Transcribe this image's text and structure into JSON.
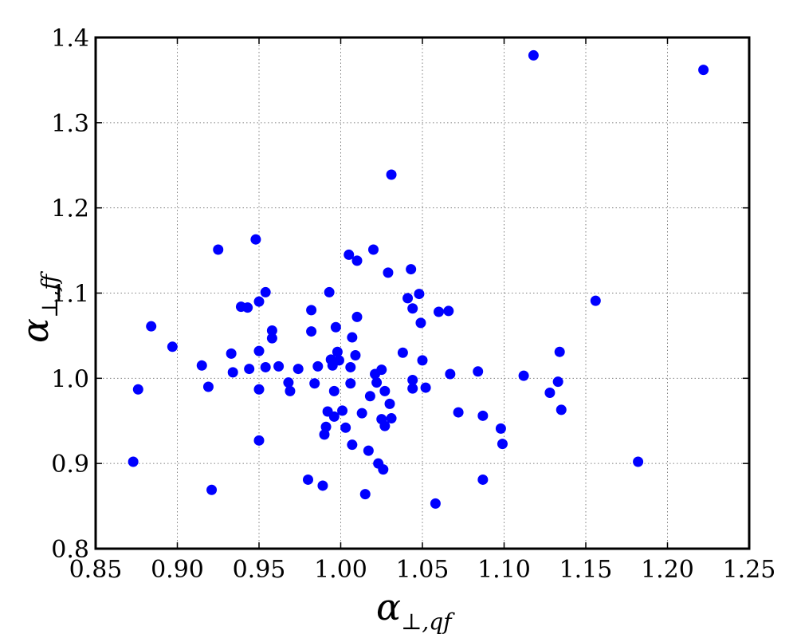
{
  "chart_data": {
    "type": "scatter",
    "xlabel": {
      "main": "α",
      "sub": "⊥,qf"
    },
    "ylabel": {
      "main": "α",
      "sub": "⊥,ff"
    },
    "xlim": [
      0.85,
      1.25
    ],
    "ylim": [
      0.8,
      1.4
    ],
    "xticks": [
      "0.85",
      "0.90",
      "0.95",
      "1.00",
      "1.05",
      "1.10",
      "1.15",
      "1.20",
      "1.25"
    ],
    "yticks": [
      "0.8",
      "0.9",
      "1.0",
      "1.1",
      "1.2",
      "1.3",
      "1.4"
    ],
    "grid": true,
    "marker_color": "#0000ff",
    "points": [
      {
        "x": 0.873,
        "y": 0.902
      },
      {
        "x": 0.876,
        "y": 0.987
      },
      {
        "x": 0.884,
        "y": 1.061
      },
      {
        "x": 0.897,
        "y": 1.037
      },
      {
        "x": 0.915,
        "y": 1.015
      },
      {
        "x": 0.919,
        "y": 0.99
      },
      {
        "x": 0.921,
        "y": 0.869
      },
      {
        "x": 0.925,
        "y": 1.151
      },
      {
        "x": 0.933,
        "y": 1.029
      },
      {
        "x": 0.934,
        "y": 1.007
      },
      {
        "x": 0.939,
        "y": 1.084
      },
      {
        "x": 0.943,
        "y": 1.083
      },
      {
        "x": 0.944,
        "y": 1.011
      },
      {
        "x": 0.948,
        "y": 1.163
      },
      {
        "x": 0.95,
        "y": 1.09
      },
      {
        "x": 0.95,
        "y": 1.032
      },
      {
        "x": 0.95,
        "y": 0.987
      },
      {
        "x": 0.95,
        "y": 0.927
      },
      {
        "x": 0.954,
        "y": 1.101
      },
      {
        "x": 0.954,
        "y": 1.013
      },
      {
        "x": 0.958,
        "y": 1.056
      },
      {
        "x": 0.958,
        "y": 1.047
      },
      {
        "x": 0.962,
        "y": 1.014
      },
      {
        "x": 0.968,
        "y": 0.995
      },
      {
        "x": 0.969,
        "y": 0.985
      },
      {
        "x": 0.974,
        "y": 1.011
      },
      {
        "x": 0.98,
        "y": 0.881
      },
      {
        "x": 0.982,
        "y": 1.08
      },
      {
        "x": 0.982,
        "y": 1.055
      },
      {
        "x": 0.984,
        "y": 0.994
      },
      {
        "x": 0.986,
        "y": 1.014
      },
      {
        "x": 0.989,
        "y": 0.874
      },
      {
        "x": 0.99,
        "y": 0.934
      },
      {
        "x": 0.991,
        "y": 0.943
      },
      {
        "x": 0.992,
        "y": 0.961
      },
      {
        "x": 0.993,
        "y": 1.101
      },
      {
        "x": 0.994,
        "y": 1.022
      },
      {
        "x": 0.995,
        "y": 1.015
      },
      {
        "x": 0.996,
        "y": 0.985
      },
      {
        "x": 0.996,
        "y": 0.955
      },
      {
        "x": 0.997,
        "y": 1.06
      },
      {
        "x": 0.998,
        "y": 1.031
      },
      {
        "x": 0.999,
        "y": 1.021
      },
      {
        "x": 1.001,
        "y": 0.962
      },
      {
        "x": 1.003,
        "y": 0.942
      },
      {
        "x": 1.005,
        "y": 1.145
      },
      {
        "x": 1.006,
        "y": 1.013
      },
      {
        "x": 1.006,
        "y": 0.994
      },
      {
        "x": 1.007,
        "y": 1.048
      },
      {
        "x": 1.007,
        "y": 0.922
      },
      {
        "x": 1.009,
        "y": 1.027
      },
      {
        "x": 1.01,
        "y": 1.138
      },
      {
        "x": 1.01,
        "y": 1.072
      },
      {
        "x": 1.013,
        "y": 0.959
      },
      {
        "x": 1.015,
        "y": 0.864
      },
      {
        "x": 1.017,
        "y": 0.915
      },
      {
        "x": 1.018,
        "y": 0.979
      },
      {
        "x": 1.02,
        "y": 1.151
      },
      {
        "x": 1.021,
        "y": 1.005
      },
      {
        "x": 1.022,
        "y": 0.995
      },
      {
        "x": 1.023,
        "y": 0.9
      },
      {
        "x": 1.025,
        "y": 1.01
      },
      {
        "x": 1.025,
        "y": 0.952
      },
      {
        "x": 1.026,
        "y": 0.893
      },
      {
        "x": 1.027,
        "y": 0.985
      },
      {
        "x": 1.027,
        "y": 0.944
      },
      {
        "x": 1.029,
        "y": 1.124
      },
      {
        "x": 1.03,
        "y": 0.97
      },
      {
        "x": 1.031,
        "y": 1.239
      },
      {
        "x": 1.031,
        "y": 0.953
      },
      {
        "x": 1.038,
        "y": 1.03
      },
      {
        "x": 1.041,
        "y": 1.094
      },
      {
        "x": 1.043,
        "y": 1.128
      },
      {
        "x": 1.044,
        "y": 1.082
      },
      {
        "x": 1.044,
        "y": 0.998
      },
      {
        "x": 1.044,
        "y": 0.988
      },
      {
        "x": 1.048,
        "y": 1.099
      },
      {
        "x": 1.049,
        "y": 1.065
      },
      {
        "x": 1.05,
        "y": 1.021
      },
      {
        "x": 1.052,
        "y": 0.989
      },
      {
        "x": 1.058,
        "y": 0.853
      },
      {
        "x": 1.06,
        "y": 1.078
      },
      {
        "x": 1.066,
        "y": 1.079
      },
      {
        "x": 1.067,
        "y": 1.005
      },
      {
        "x": 1.072,
        "y": 0.96
      },
      {
        "x": 1.084,
        "y": 1.008
      },
      {
        "x": 1.087,
        "y": 0.956
      },
      {
        "x": 1.087,
        "y": 0.881
      },
      {
        "x": 1.098,
        "y": 0.941
      },
      {
        "x": 1.099,
        "y": 0.923
      },
      {
        "x": 1.112,
        "y": 1.003
      },
      {
        "x": 1.118,
        "y": 1.379
      },
      {
        "x": 1.128,
        "y": 0.983
      },
      {
        "x": 1.133,
        "y": 0.996
      },
      {
        "x": 1.134,
        "y": 1.031
      },
      {
        "x": 1.135,
        "y": 0.963
      },
      {
        "x": 1.156,
        "y": 1.091
      },
      {
        "x": 1.182,
        "y": 0.902
      },
      {
        "x": 1.222,
        "y": 1.362
      }
    ]
  }
}
